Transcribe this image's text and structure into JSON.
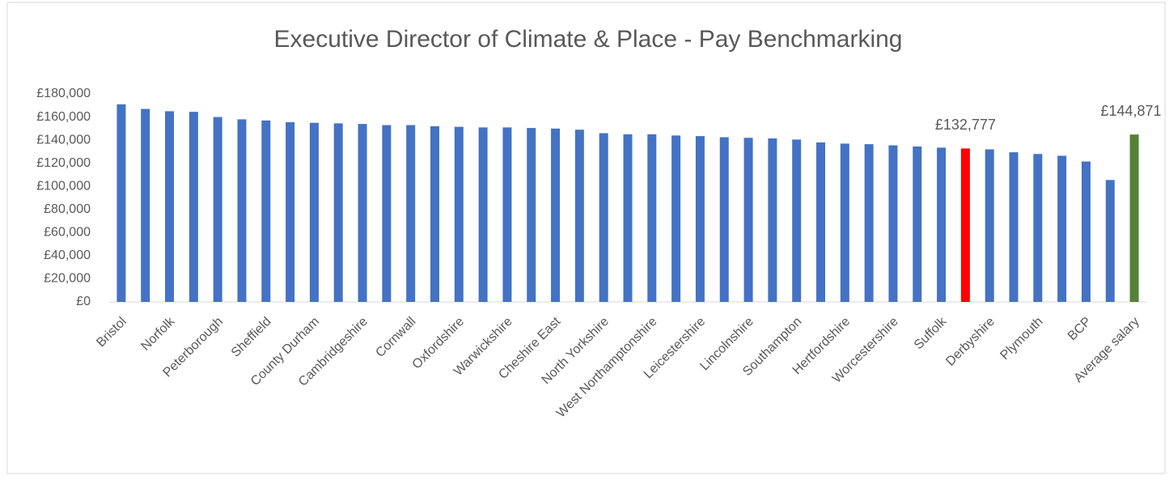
{
  "chart_data": {
    "type": "bar",
    "title": "Executive Director of Climate & Place - Pay Benchmarking",
    "categories": [
      "Bristol",
      null,
      "Norfolk",
      null,
      "Peterborough",
      null,
      "Sheffield",
      null,
      "County Durham",
      null,
      "Cambridgeshire",
      null,
      "Cornwall",
      null,
      "Oxfordshire",
      null,
      "Warwickshire",
      null,
      "Cheshire East",
      null,
      "North Yorkshire",
      null,
      "West Northamptonshire",
      null,
      "Leicestershire",
      null,
      "Lincolnshire",
      null,
      "Southampton",
      null,
      "Hertfordshire",
      null,
      "Worcestershire",
      null,
      "Suffolk",
      null,
      "Derbyshire",
      null,
      "Plymouth",
      null,
      "BCP",
      null,
      "Average salary"
    ],
    "values": [
      171000,
      167000,
      165000,
      164500,
      160000,
      158000,
      157000,
      155500,
      155000,
      154500,
      154000,
      153000,
      153000,
      152000,
      151500,
      151000,
      151000,
      150500,
      150000,
      149000,
      146000,
      145000,
      145000,
      144000,
      143500,
      142500,
      142000,
      141500,
      140500,
      138000,
      137000,
      136500,
      135500,
      134500,
      133500,
      132777,
      132000,
      129500,
      128000,
      126500,
      121500,
      105500,
      144871
    ],
    "value_labels": [
      null,
      null,
      null,
      null,
      null,
      null,
      null,
      null,
      null,
      null,
      null,
      null,
      null,
      null,
      null,
      null,
      null,
      null,
      null,
      null,
      null,
      null,
      null,
      null,
      null,
      null,
      null,
      null,
      null,
      null,
      null,
      null,
      null,
      null,
      null,
      "£132,777",
      null,
      null,
      null,
      null,
      null,
      null,
      "£144,871"
    ],
    "colors": [
      "#4472c4",
      "#4472c4",
      "#4472c4",
      "#4472c4",
      "#4472c4",
      "#4472c4",
      "#4472c4",
      "#4472c4",
      "#4472c4",
      "#4472c4",
      "#4472c4",
      "#4472c4",
      "#4472c4",
      "#4472c4",
      "#4472c4",
      "#4472c4",
      "#4472c4",
      "#4472c4",
      "#4472c4",
      "#4472c4",
      "#4472c4",
      "#4472c4",
      "#4472c4",
      "#4472c4",
      "#4472c4",
      "#4472c4",
      "#4472c4",
      "#4472c4",
      "#4472c4",
      "#4472c4",
      "#4472c4",
      "#4472c4",
      "#4472c4",
      "#4472c4",
      "#4472c4",
      "#ff0000",
      "#4472c4",
      "#4472c4",
      "#4472c4",
      "#4472c4",
      "#4472c4",
      "#4472c4",
      "#548235"
    ],
    "ylim": [
      0,
      180000
    ],
    "yticks": [
      {
        "value": 0,
        "label": "£0"
      },
      {
        "value": 20000,
        "label": "£20,000"
      },
      {
        "value": 40000,
        "label": "£40,000"
      },
      {
        "value": 60000,
        "label": "£60,000"
      },
      {
        "value": 80000,
        "label": "£80,000"
      },
      {
        "value": 100000,
        "label": "£100,000"
      },
      {
        "value": 120000,
        "label": "£120,000"
      },
      {
        "value": 140000,
        "label": "£140,000"
      },
      {
        "value": 160000,
        "label": "£160,000"
      },
      {
        "value": 180000,
        "label": "£180,000"
      }
    ],
    "grid": false
  }
}
